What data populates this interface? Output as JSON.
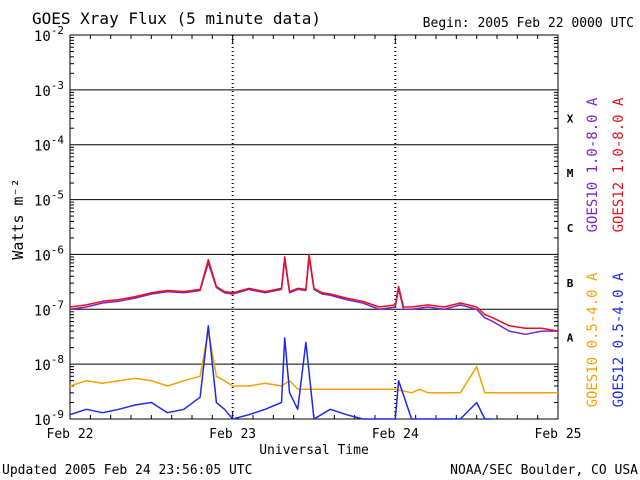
{
  "header": {
    "title": "GOES Xray Flux (5 minute data)",
    "begin": "Begin:  2005 Feb 22 0000 UTC"
  },
  "footer": {
    "updated": "Updated 2005 Feb 24 23:56:05 UTC",
    "source": "NOAA/SEC Boulder, CO USA"
  },
  "chart_data": {
    "type": "line",
    "title": "GOES Xray Flux (5 minute data)",
    "xlabel": "Universal Time",
    "ylabel": "Watts m⁻²",
    "yscale": "log",
    "ylim": [
      1e-09,
      0.01
    ],
    "x_ticks": [
      "Feb 22",
      "Feb 23",
      "Feb 24",
      "Feb 25"
    ],
    "x_range_days": [
      0,
      3
    ],
    "y_ticks": [
      {
        "base": "10",
        "exp": "-2"
      },
      {
        "base": "10",
        "exp": "-3"
      },
      {
        "base": "10",
        "exp": "-4"
      },
      {
        "base": "10",
        "exp": "-5"
      },
      {
        "base": "10",
        "exp": "-6"
      },
      {
        "base": "10",
        "exp": "-7"
      },
      {
        "base": "10",
        "exp": "-8"
      },
      {
        "base": "10",
        "exp": "-9"
      }
    ],
    "flare_classes": [
      {
        "label": "X",
        "log_center": -3.5
      },
      {
        "label": "M",
        "log_center": -4.5
      },
      {
        "label": "C",
        "log_center": -5.5
      },
      {
        "label": "B",
        "log_center": -6.5
      },
      {
        "label": "A",
        "log_center": -7.5
      }
    ],
    "series": [
      {
        "name": "GOES10 1.0-8.0 A",
        "color": "#7b22c8",
        "x": [
          0,
          0.1,
          0.2,
          0.3,
          0.4,
          0.5,
          0.6,
          0.7,
          0.8,
          0.85,
          0.9,
          0.95,
          1.0,
          1.1,
          1.2,
          1.3,
          1.32,
          1.35,
          1.4,
          1.45,
          1.47,
          1.5,
          1.55,
          1.6,
          1.7,
          1.8,
          1.9,
          2.0,
          2.02,
          2.05,
          2.1,
          2.2,
          2.3,
          2.4,
          2.5,
          2.55,
          2.6,
          2.7,
          2.8,
          2.9,
          3.0
        ],
        "y": [
          1e-07,
          1.1e-07,
          1.3e-07,
          1.4e-07,
          1.6e-07,
          1.9e-07,
          2.1e-07,
          2e-07,
          2.2e-07,
          7e-07,
          2.5e-07,
          2e-07,
          1.9e-07,
          2.3e-07,
          2e-07,
          2.3e-07,
          8e-07,
          2e-07,
          2.3e-07,
          2.2e-07,
          9e-07,
          2.3e-07,
          1.9e-07,
          1.8e-07,
          1.5e-07,
          1.3e-07,
          1e-07,
          1.1e-07,
          2.4e-07,
          1e-07,
          1e-07,
          1.1e-07,
          1e-07,
          1.2e-07,
          1e-07,
          7e-08,
          6e-08,
          4e-08,
          3.5e-08,
          4e-08,
          4e-08
        ]
      },
      {
        "name": "GOES12 1.0-8.0 A",
        "color": "#e8101c",
        "x": [
          0,
          0.1,
          0.2,
          0.3,
          0.4,
          0.5,
          0.6,
          0.7,
          0.8,
          0.85,
          0.9,
          0.95,
          1.0,
          1.1,
          1.2,
          1.3,
          1.32,
          1.35,
          1.4,
          1.45,
          1.47,
          1.5,
          1.55,
          1.6,
          1.7,
          1.8,
          1.9,
          2.0,
          2.02,
          2.05,
          2.1,
          2.2,
          2.3,
          2.4,
          2.5,
          2.55,
          2.6,
          2.7,
          2.8,
          2.9,
          3.0
        ],
        "y": [
          1.1e-07,
          1.2e-07,
          1.4e-07,
          1.5e-07,
          1.7e-07,
          2e-07,
          2.2e-07,
          2.1e-07,
          2.3e-07,
          8e-07,
          2.6e-07,
          2.1e-07,
          2e-07,
          2.4e-07,
          2.1e-07,
          2.4e-07,
          9e-07,
          2.1e-07,
          2.4e-07,
          2.3e-07,
          1e-06,
          2.4e-07,
          2e-07,
          1.9e-07,
          1.6e-07,
          1.4e-07,
          1.1e-07,
          1.2e-07,
          2.6e-07,
          1.1e-07,
          1.1e-07,
          1.2e-07,
          1.1e-07,
          1.3e-07,
          1.1e-07,
          8e-08,
          7e-08,
          5e-08,
          4.5e-08,
          4.5e-08,
          4e-08
        ]
      },
      {
        "name": "GOES10 0.5-4.0 A",
        "color": "#f5a200",
        "x": [
          0,
          0.1,
          0.2,
          0.3,
          0.4,
          0.5,
          0.6,
          0.7,
          0.8,
          0.85,
          0.9,
          0.95,
          1.0,
          1.1,
          1.2,
          1.3,
          1.35,
          1.4,
          1.5,
          1.6,
          1.7,
          1.8,
          1.9,
          2.0,
          2.1,
          2.15,
          2.2,
          2.3,
          2.4,
          2.5,
          2.55,
          2.6,
          2.7,
          2.8,
          2.9,
          3.0
        ],
        "y": [
          4e-09,
          5e-09,
          4.5e-09,
          5e-09,
          5.5e-09,
          5e-09,
          4e-09,
          5e-09,
          6e-09,
          4e-08,
          6e-09,
          5e-09,
          4e-09,
          4e-09,
          4.5e-09,
          4e-09,
          5e-09,
          3.5e-09,
          3.5e-09,
          3.5e-09,
          3.5e-09,
          3.5e-09,
          3.5e-09,
          3.5e-09,
          3e-09,
          3.5e-09,
          3e-09,
          3e-09,
          3e-09,
          9e-09,
          3e-09,
          3e-09,
          3e-09,
          3e-09,
          3e-09,
          3e-09
        ]
      },
      {
        "name": "GOES12 0.5-4.0 A",
        "color": "#1a2ae8",
        "x": [
          0,
          0.1,
          0.2,
          0.3,
          0.4,
          0.5,
          0.6,
          0.7,
          0.8,
          0.85,
          0.9,
          0.95,
          1.0,
          1.1,
          1.2,
          1.3,
          1.32,
          1.35,
          1.4,
          1.45,
          1.5,
          1.6,
          1.7,
          1.8,
          1.9,
          2.0,
          2.02,
          2.1,
          2.2,
          2.3,
          2.4,
          2.5,
          2.55,
          2.6
        ],
        "y": [
          1.2e-09,
          1.5e-09,
          1.3e-09,
          1.5e-09,
          1.8e-09,
          2e-09,
          1.3e-09,
          1.5e-09,
          2.5e-09,
          5e-08,
          2e-09,
          1.5e-09,
          1e-09,
          1.2e-09,
          1.5e-09,
          2e-09,
          3e-08,
          3e-09,
          1.5e-09,
          2.5e-08,
          1e-09,
          1.5e-09,
          1.2e-09,
          1e-09,
          1e-09,
          1e-09,
          5e-09,
          1e-09,
          1e-09,
          1e-09,
          1e-09,
          2e-09,
          1e-09,
          1e-09
        ]
      }
    ]
  }
}
